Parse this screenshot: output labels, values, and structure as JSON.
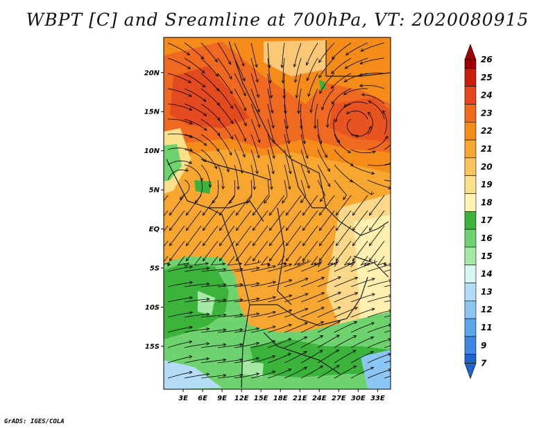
{
  "title": "WBPT [C] and Sreamline at 700hPa, VT: 2020080915",
  "credit": "GrADS: IGES/COLA",
  "map": {
    "lat_labels": [
      "20N",
      "15N",
      "10N",
      "5N",
      "EQ",
      "5S",
      "10S",
      "15S"
    ],
    "lon_labels": [
      "3E",
      "6E",
      "9E",
      "12E",
      "15E",
      "18E",
      "21E",
      "24E",
      "27E",
      "30E",
      "33E"
    ],
    "lat_range_deg": [
      -20.5,
      24.5
    ],
    "lon_range_deg": [
      0,
      35
    ]
  },
  "colorbar": {
    "labels": [
      "26",
      "25",
      "24",
      "23",
      "22",
      "21",
      "20",
      "19",
      "18",
      "17",
      "16",
      "15",
      "14",
      "13",
      "12",
      "11",
      "9",
      "7"
    ],
    "colors": [
      "#a00000",
      "#c81e0a",
      "#e6461e",
      "#f06a1e",
      "#f58c1a",
      "#f7a630",
      "#fac45a",
      "#fbe08c",
      "#fff4b0",
      "#3cb43c",
      "#6ed26e",
      "#a6e8a6",
      "#d8f6f0",
      "#b4dcf8",
      "#8cc6f4",
      "#5aa6ec",
      "#3c88e4",
      "#1e64d2"
    ]
  }
}
